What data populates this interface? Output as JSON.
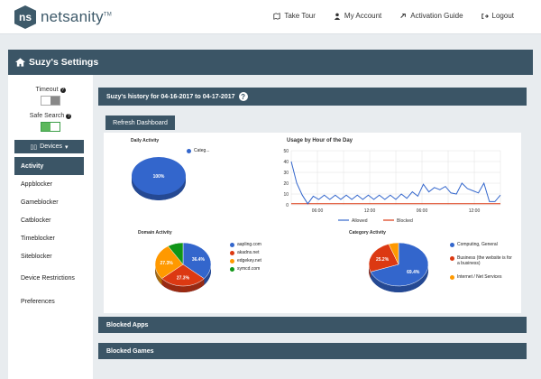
{
  "brand": {
    "logo_mark": "ns",
    "name": "netsanity",
    "tm": "TM"
  },
  "nav": {
    "items": [
      {
        "label": "Take Tour",
        "icon": "map-icon"
      },
      {
        "label": "My Account",
        "icon": "user-icon"
      },
      {
        "label": "Activation Guide",
        "icon": "link-icon"
      },
      {
        "label": "Logout",
        "icon": "logout-icon"
      }
    ]
  },
  "header": {
    "title": "Suzy's Settings",
    "icon": "home-icon"
  },
  "sidebar": {
    "timeout_label": "Timeout",
    "safesearch_label": "Safe Search",
    "timeout_on": false,
    "safesearch_on": true,
    "devices_label": "Devices",
    "items": [
      {
        "label": "Activity",
        "active": true
      },
      {
        "label": "Appblocker"
      },
      {
        "label": "Gameblocker"
      },
      {
        "label": "Catblocker"
      },
      {
        "label": "Timeblocker"
      },
      {
        "label": "Siteblocker"
      },
      {
        "label": "Device Restrictions"
      },
      {
        "label": "Preferences"
      }
    ]
  },
  "main": {
    "history_title": "Suzy's history for 04-16-2017 to 04-17-2017",
    "help_glyph": "?",
    "refresh_label": "Refresh Dashboard",
    "blocked_apps_label": "Blocked Apps",
    "blocked_games_label": "Blocked Games"
  },
  "colors": {
    "blue": "#3366cc",
    "red": "#dc3912",
    "orange": "#ff9900",
    "green": "#109618",
    "header": "#3b5566"
  },
  "chart_data": [
    {
      "type": "pie",
      "title": "Daily Activity",
      "slices": [
        {
          "name": "Categ...",
          "value": 100,
          "label": "100%"
        }
      ]
    },
    {
      "type": "line",
      "title": "Usage by Hour of the Day",
      "x_tick_labels": [
        "06:00",
        "12:00",
        "06:00",
        "12:00"
      ],
      "ylim": [
        0,
        50
      ],
      "y_ticks": [
        0,
        10,
        20,
        30,
        40,
        50
      ],
      "grid": true,
      "legend_position": "bottom",
      "series": [
        {
          "name": "Allowed",
          "color": "#3366cc",
          "values": [
            40,
            20,
            9,
            1,
            8,
            5,
            9,
            5,
            9,
            5,
            9,
            5,
            9,
            5,
            9,
            5,
            9,
            5,
            9,
            5,
            10,
            6,
            12,
            8,
            19,
            12,
            16,
            14,
            17,
            11,
            10,
            20,
            15,
            13,
            11,
            20,
            3,
            3,
            9
          ]
        },
        {
          "name": "Blocked",
          "color": "#dc3912",
          "values": [
            1,
            1,
            1,
            1,
            1,
            1,
            1,
            1,
            1,
            1,
            1,
            1,
            1,
            1,
            1,
            1,
            1,
            1,
            1,
            1,
            1,
            1,
            1,
            1,
            1,
            1,
            1,
            1,
            1,
            1,
            1,
            1,
            1,
            1,
            1,
            1,
            1,
            1,
            1
          ]
        }
      ]
    },
    {
      "type": "pie",
      "title": "Domain Activity",
      "slices": [
        {
          "name": "aapling.com",
          "value": 36.4,
          "label": "36.4%"
        },
        {
          "name": "akadns.net",
          "value": 27.3,
          "label": "27.3%"
        },
        {
          "name": "edgekey.net",
          "value": 27.3,
          "label": "27.3%"
        },
        {
          "name": "symcd.com",
          "value": 9.0,
          "label": ""
        }
      ]
    },
    {
      "type": "pie",
      "title": "Category Activity",
      "slices": [
        {
          "name": "Computing, General",
          "value": 69.4,
          "label": "69.4%"
        },
        {
          "name": "Business (the website is for a business)",
          "value": 25.2,
          "label": "25.2%"
        },
        {
          "name": "Internet / Net Services",
          "value": 5.4,
          "label": ""
        }
      ]
    }
  ]
}
